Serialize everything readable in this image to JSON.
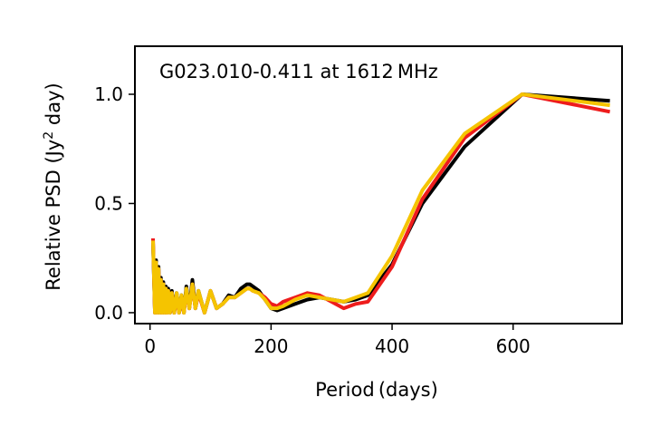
{
  "chart_data": {
    "type": "line",
    "title": "G023.010-0.411 at 1612 MHz",
    "xlabel": "Period (days)",
    "ylabel_main": "Relative PSD (Jy",
    "ylabel_sup": "2",
    "ylabel_tail": " day)",
    "xlim": [
      -25,
      780
    ],
    "ylim": [
      -0.05,
      1.22
    ],
    "xticks": [
      0,
      200,
      400,
      600
    ],
    "yticks": [
      0.0,
      0.5,
      1.0
    ],
    "ytick_labels": [
      "0.0",
      "0.5",
      "1.0"
    ],
    "grid": false,
    "legend": "none",
    "series": [
      {
        "color": "#000000",
        "x": [
          5,
          8,
          10,
          12,
          14,
          16,
          18,
          20,
          22,
          24,
          26,
          28,
          30,
          33,
          36,
          40,
          44,
          48,
          52,
          56,
          60,
          65,
          70,
          75,
          80,
          90,
          100,
          110,
          120,
          130,
          140,
          150,
          160,
          165,
          170,
          180,
          190,
          200,
          210,
          220,
          240,
          260,
          280,
          300,
          320,
          340,
          360,
          400,
          450,
          520,
          615,
          760
        ],
        "y": [
          0.32,
          0.0,
          0.24,
          0.0,
          0.21,
          0.0,
          0.16,
          0.0,
          0.14,
          0.0,
          0.12,
          0.0,
          0.11,
          0.0,
          0.1,
          0.0,
          0.09,
          0.0,
          0.08,
          0.0,
          0.12,
          0.02,
          0.15,
          0.02,
          0.1,
          0.0,
          0.1,
          0.02,
          0.04,
          0.08,
          0.07,
          0.11,
          0.13,
          0.13,
          0.12,
          0.1,
          0.06,
          0.02,
          0.01,
          0.02,
          0.04,
          0.06,
          0.07,
          0.06,
          0.05,
          0.06,
          0.08,
          0.22,
          0.5,
          0.76,
          1.0,
          0.97
        ]
      },
      {
        "color": "#ee1c1c",
        "x": [
          5,
          8,
          10,
          12,
          14,
          16,
          18,
          20,
          22,
          24,
          26,
          28,
          30,
          33,
          36,
          40,
          44,
          48,
          52,
          56,
          60,
          65,
          70,
          75,
          80,
          90,
          100,
          110,
          120,
          130,
          140,
          150,
          160,
          165,
          170,
          180,
          190,
          200,
          210,
          220,
          240,
          260,
          280,
          300,
          320,
          340,
          360,
          400,
          450,
          520,
          615,
          760
        ],
        "y": [
          0.34,
          0.0,
          0.22,
          0.0,
          0.2,
          0.0,
          0.15,
          0.0,
          0.13,
          0.0,
          0.11,
          0.0,
          0.1,
          0.0,
          0.09,
          0.0,
          0.08,
          0.0,
          0.07,
          0.0,
          0.1,
          0.02,
          0.13,
          0.02,
          0.09,
          0.0,
          0.1,
          0.02,
          0.04,
          0.07,
          0.07,
          0.09,
          0.11,
          0.11,
          0.1,
          0.09,
          0.07,
          0.04,
          0.03,
          0.05,
          0.07,
          0.09,
          0.08,
          0.05,
          0.02,
          0.04,
          0.05,
          0.21,
          0.52,
          0.8,
          1.0,
          0.92
        ]
      },
      {
        "color": "#f5c400",
        "x": [
          5,
          8,
          10,
          12,
          14,
          16,
          18,
          20,
          22,
          24,
          26,
          28,
          30,
          33,
          36,
          40,
          44,
          48,
          52,
          56,
          60,
          65,
          70,
          75,
          80,
          90,
          100,
          110,
          120,
          130,
          140,
          150,
          160,
          165,
          170,
          180,
          190,
          200,
          210,
          220,
          240,
          260,
          280,
          300,
          320,
          340,
          360,
          400,
          450,
          520,
          615,
          760
        ],
        "y": [
          0.33,
          0.0,
          0.23,
          0.0,
          0.2,
          0.0,
          0.15,
          0.0,
          0.13,
          0.0,
          0.11,
          0.0,
          0.1,
          0.0,
          0.09,
          0.0,
          0.09,
          0.0,
          0.08,
          0.0,
          0.11,
          0.02,
          0.13,
          0.02,
          0.1,
          0.0,
          0.1,
          0.02,
          0.04,
          0.07,
          0.07,
          0.09,
          0.11,
          0.11,
          0.1,
          0.09,
          0.06,
          0.02,
          0.02,
          0.03,
          0.06,
          0.08,
          0.07,
          0.06,
          0.05,
          0.07,
          0.09,
          0.26,
          0.56,
          0.82,
          1.0,
          0.95
        ]
      }
    ]
  }
}
